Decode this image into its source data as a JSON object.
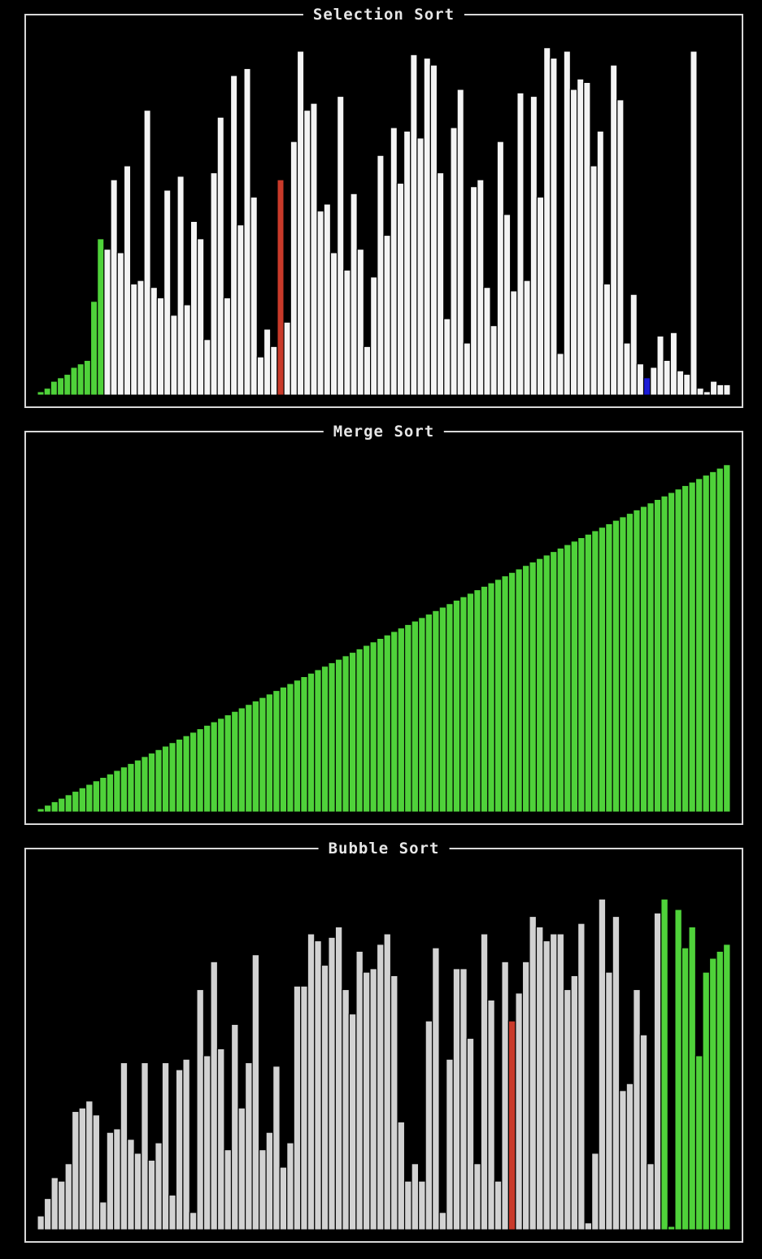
{
  "colors": {
    "background": "#000000",
    "frame": "#d8d8d8",
    "bar_default": "#f4f4f4",
    "bar_default_bubble": "#d2d2d2",
    "bar_sorted": "#4fd23a",
    "bar_compare": "#c93a2a",
    "bar_current": "#1a1ad6",
    "bar_outline": "#000000"
  },
  "chart_data": [
    {
      "type": "bar",
      "title": "Selection Sort",
      "ylim": [
        0,
        100
      ],
      "values": [
        1,
        2,
        4,
        5,
        6,
        8,
        9,
        10,
        27,
        45,
        42,
        62,
        41,
        66,
        32,
        33,
        82,
        31,
        28,
        59,
        23,
        63,
        26,
        50,
        45,
        16,
        64,
        80,
        28,
        92,
        49,
        94,
        57,
        11,
        19,
        14,
        62,
        21,
        73,
        99,
        82,
        84,
        53,
        55,
        41,
        86,
        36,
        58,
        42,
        14,
        34,
        69,
        46,
        77,
        61,
        76,
        98,
        74,
        97,
        95,
        64,
        22,
        77,
        88,
        15,
        60,
        62,
        31,
        20,
        73,
        52,
        30,
        87,
        33,
        86,
        57,
        100,
        97,
        12,
        99,
        88,
        91,
        90,
        66,
        76,
        32,
        95,
        85,
        15,
        29,
        9,
        5,
        8,
        17,
        10,
        18,
        7,
        6,
        99,
        2,
        1,
        4,
        3,
        3
      ],
      "value_labels_approx": true,
      "sorted_count": 10,
      "highlight_compare_index": 36,
      "highlight_current_index": 91
    },
    {
      "type": "bar",
      "title": "Merge Sort",
      "ylim": [
        0,
        100
      ],
      "values": [
        1,
        2,
        3,
        4,
        5,
        6,
        7,
        8,
        9,
        10,
        11,
        12,
        13,
        14,
        15,
        16,
        17,
        18,
        19,
        20,
        21,
        22,
        23,
        24,
        25,
        26,
        27,
        28,
        29,
        30,
        31,
        32,
        33,
        34,
        35,
        36,
        37,
        38,
        39,
        40,
        41,
        42,
        43,
        44,
        45,
        46,
        47,
        48,
        49,
        50,
        51,
        52,
        53,
        54,
        55,
        56,
        57,
        58,
        59,
        60,
        61,
        62,
        63,
        64,
        65,
        66,
        67,
        68,
        69,
        70,
        71,
        72,
        73,
        74,
        75,
        76,
        77,
        78,
        79,
        80,
        81,
        82,
        83,
        84,
        85,
        86,
        87,
        88,
        89,
        90,
        91,
        92,
        93,
        94,
        95,
        96,
        97,
        98,
        99,
        100
      ],
      "sorted_count": 100
    },
    {
      "type": "bar",
      "title": "Bubble Sort",
      "ylim": [
        0,
        100
      ],
      "values": [
        4,
        9,
        15,
        14,
        19,
        34,
        35,
        37,
        33,
        8,
        28,
        29,
        48,
        26,
        22,
        48,
        20,
        25,
        48,
        10,
        46,
        49,
        5,
        69,
        50,
        77,
        52,
        23,
        59,
        35,
        48,
        79,
        23,
        28,
        47,
        18,
        25,
        70,
        70,
        85,
        83,
        76,
        84,
        87,
        69,
        62,
        80,
        74,
        75,
        82,
        85,
        73,
        31,
        14,
        19,
        14,
        60,
        81,
        5,
        49,
        75,
        75,
        55,
        19,
        85,
        66,
        14,
        77,
        60,
        68,
        77,
        90,
        87,
        83,
        85,
        85,
        69,
        73,
        88,
        2,
        22,
        95,
        74,
        90,
        40,
        42,
        69,
        56,
        19,
        91,
        95,
        1,
        92,
        81,
        87,
        50,
        74,
        78,
        80,
        82
      ],
      "value_labels_approx": true,
      "sorted_count": 10,
      "highlight_compare_index": 68
    }
  ]
}
